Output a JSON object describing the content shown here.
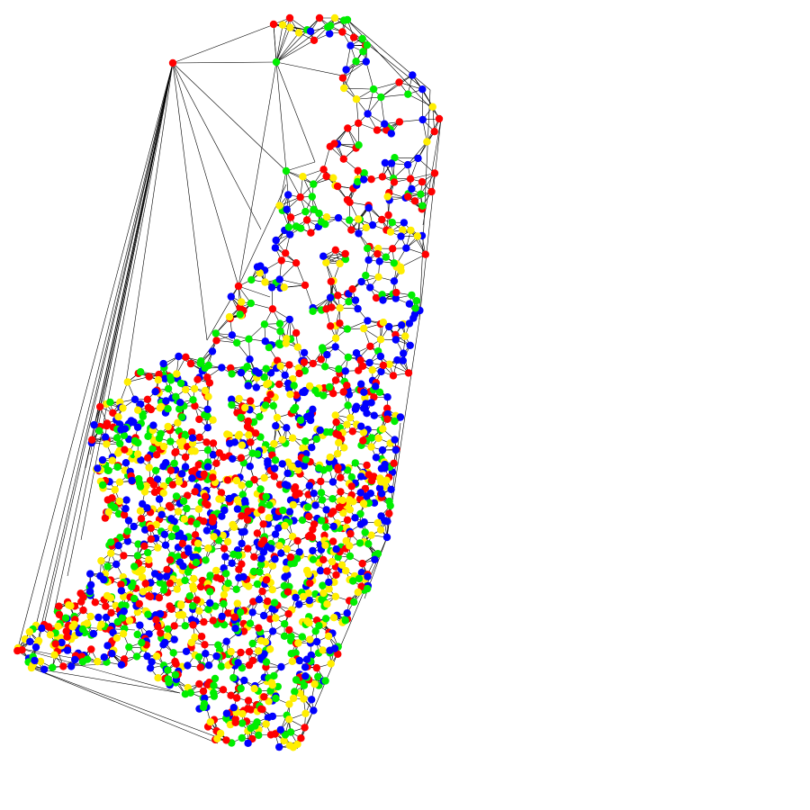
{
  "diagram": {
    "type": "graph-triangulation",
    "background": "#ffffff",
    "edge_color": "#000000",
    "node_colors": {
      "red": "#ff0000",
      "green": "#00ee00",
      "blue": "#0000ff",
      "yellow": "#ffee00"
    },
    "node_color_order": [
      "red",
      "green",
      "blue",
      "yellow"
    ],
    "random_seed": 20240611
  }
}
